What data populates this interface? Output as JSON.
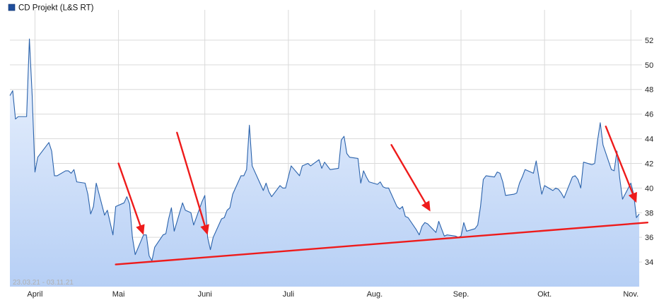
{
  "legend": {
    "label": "CD Projekt (L&S RT)",
    "color": "#1f4e9c"
  },
  "date_range": "23.03.21 - 03.11.21",
  "chart_data": {
    "type": "area",
    "title": "",
    "xlabel": "",
    "ylabel": "",
    "series": [
      {
        "name": "CD Projekt (L&S RT)",
        "color": "#2a62ab",
        "fill_top": "#eef4fe",
        "fill_bottom": "#b6cff5",
        "points": [
          [
            "2021-03-23",
            47.5
          ],
          [
            "2021-03-24",
            47.9
          ],
          [
            "2021-03-25",
            45.6
          ],
          [
            "2021-03-26",
            45.8
          ],
          [
            "2021-03-29",
            45.8
          ],
          [
            "2021-03-30",
            52.1
          ],
          [
            "2021-03-31",
            47.5
          ],
          [
            "2021-04-01",
            41.3
          ],
          [
            "2021-04-02",
            42.5
          ],
          [
            "2021-04-06",
            43.7
          ],
          [
            "2021-04-07",
            43.0
          ],
          [
            "2021-04-08",
            41.0
          ],
          [
            "2021-04-09",
            41.0
          ],
          [
            "2021-04-12",
            41.4
          ],
          [
            "2021-04-13",
            41.4
          ],
          [
            "2021-04-14",
            41.2
          ],
          [
            "2021-04-15",
            41.5
          ],
          [
            "2021-04-16",
            40.5
          ],
          [
            "2021-04-19",
            40.4
          ],
          [
            "2021-04-20",
            39.5
          ],
          [
            "2021-04-21",
            37.9
          ],
          [
            "2021-04-22",
            38.5
          ],
          [
            "2021-04-23",
            40.4
          ],
          [
            "2021-04-26",
            37.8
          ],
          [
            "2021-04-27",
            38.2
          ],
          [
            "2021-04-28",
            37.2
          ],
          [
            "2021-04-29",
            36.2
          ],
          [
            "2021-04-30",
            38.5
          ],
          [
            "2021-05-03",
            38.8
          ],
          [
            "2021-05-04",
            39.3
          ],
          [
            "2021-05-05",
            38.7
          ],
          [
            "2021-05-06",
            36.0
          ],
          [
            "2021-05-07",
            34.6
          ],
          [
            "2021-05-10",
            36.2
          ],
          [
            "2021-05-11",
            36.2
          ],
          [
            "2021-05-12",
            34.5
          ],
          [
            "2021-05-13",
            34.1
          ],
          [
            "2021-05-14",
            35.2
          ],
          [
            "2021-05-17",
            36.2
          ],
          [
            "2021-05-18",
            36.3
          ],
          [
            "2021-05-19",
            37.5
          ],
          [
            "2021-05-20",
            38.4
          ],
          [
            "2021-05-21",
            36.5
          ],
          [
            "2021-05-24",
            38.8
          ],
          [
            "2021-05-25",
            38.2
          ],
          [
            "2021-05-26",
            38.1
          ],
          [
            "2021-05-27",
            38.0
          ],
          [
            "2021-05-28",
            37.0
          ],
          [
            "2021-05-31",
            38.9
          ],
          [
            "2021-06-01",
            39.4
          ],
          [
            "2021-06-02",
            36.0
          ],
          [
            "2021-06-03",
            35.0
          ],
          [
            "2021-06-04",
            36.0
          ],
          [
            "2021-06-07",
            37.5
          ],
          [
            "2021-06-08",
            37.6
          ],
          [
            "2021-06-09",
            38.2
          ],
          [
            "2021-06-10",
            38.4
          ],
          [
            "2021-06-11",
            39.5
          ],
          [
            "2021-06-14",
            41.0
          ],
          [
            "2021-06-15",
            41.0
          ],
          [
            "2021-06-16",
            41.5
          ],
          [
            "2021-06-17",
            45.1
          ],
          [
            "2021-06-18",
            41.8
          ],
          [
            "2021-06-21",
            40.3
          ],
          [
            "2021-06-22",
            39.8
          ],
          [
            "2021-06-23",
            40.4
          ],
          [
            "2021-06-24",
            39.7
          ],
          [
            "2021-06-25",
            39.3
          ],
          [
            "2021-06-28",
            40.2
          ],
          [
            "2021-06-29",
            40.0
          ],
          [
            "2021-06-30",
            40.0
          ],
          [
            "2021-07-01",
            40.9
          ],
          [
            "2021-07-02",
            41.8
          ],
          [
            "2021-07-05",
            41.0
          ],
          [
            "2021-07-06",
            41.8
          ],
          [
            "2021-07-07",
            41.9
          ],
          [
            "2021-07-08",
            42.0
          ],
          [
            "2021-07-09",
            41.8
          ],
          [
            "2021-07-12",
            42.3
          ],
          [
            "2021-07-13",
            41.6
          ],
          [
            "2021-07-14",
            42.1
          ],
          [
            "2021-07-15",
            41.8
          ],
          [
            "2021-07-16",
            41.5
          ],
          [
            "2021-07-19",
            41.6
          ],
          [
            "2021-07-20",
            43.9
          ],
          [
            "2021-07-21",
            44.2
          ],
          [
            "2021-07-22",
            42.8
          ],
          [
            "2021-07-23",
            42.5
          ],
          [
            "2021-07-26",
            42.4
          ],
          [
            "2021-07-27",
            40.4
          ],
          [
            "2021-07-28",
            41.4
          ],
          [
            "2021-07-29",
            40.9
          ],
          [
            "2021-07-30",
            40.5
          ],
          [
            "2021-08-02",
            40.3
          ],
          [
            "2021-08-03",
            40.5
          ],
          [
            "2021-08-04",
            40.1
          ],
          [
            "2021-08-05",
            40.0
          ],
          [
            "2021-08-06",
            40.0
          ],
          [
            "2021-08-09",
            38.5
          ],
          [
            "2021-08-10",
            38.3
          ],
          [
            "2021-08-11",
            38.5
          ],
          [
            "2021-08-12",
            37.7
          ],
          [
            "2021-08-13",
            37.6
          ],
          [
            "2021-08-16",
            36.6
          ],
          [
            "2021-08-17",
            36.2
          ],
          [
            "2021-08-18",
            36.9
          ],
          [
            "2021-08-19",
            37.2
          ],
          [
            "2021-08-20",
            37.1
          ],
          [
            "2021-08-23",
            36.4
          ],
          [
            "2021-08-24",
            37.3
          ],
          [
            "2021-08-25",
            36.7
          ],
          [
            "2021-08-26",
            36.1
          ],
          [
            "2021-08-27",
            36.2
          ],
          [
            "2021-08-30",
            36.1
          ],
          [
            "2021-08-31",
            36.0
          ],
          [
            "2021-09-01",
            36.1
          ],
          [
            "2021-09-02",
            37.2
          ],
          [
            "2021-09-03",
            36.5
          ],
          [
            "2021-09-06",
            36.7
          ],
          [
            "2021-09-07",
            37.0
          ],
          [
            "2021-09-08",
            38.5
          ],
          [
            "2021-09-09",
            40.7
          ],
          [
            "2021-09-10",
            41.0
          ],
          [
            "2021-09-13",
            40.9
          ],
          [
            "2021-09-14",
            41.3
          ],
          [
            "2021-09-15",
            41.2
          ],
          [
            "2021-09-16",
            40.5
          ],
          [
            "2021-09-17",
            39.4
          ],
          [
            "2021-09-20",
            39.5
          ],
          [
            "2021-09-21",
            39.6
          ],
          [
            "2021-09-22",
            40.4
          ],
          [
            "2021-09-23",
            40.9
          ],
          [
            "2021-09-24",
            41.5
          ],
          [
            "2021-09-27",
            41.2
          ],
          [
            "2021-09-28",
            42.2
          ],
          [
            "2021-09-29",
            40.8
          ],
          [
            "2021-09-30",
            39.5
          ],
          [
            "2021-10-01",
            40.2
          ],
          [
            "2021-10-04",
            39.8
          ],
          [
            "2021-10-05",
            40.0
          ],
          [
            "2021-10-06",
            39.9
          ],
          [
            "2021-10-07",
            39.6
          ],
          [
            "2021-10-08",
            39.2
          ],
          [
            "2021-10-11",
            40.9
          ],
          [
            "2021-10-12",
            41.0
          ],
          [
            "2021-10-13",
            40.7
          ],
          [
            "2021-10-14",
            40.0
          ],
          [
            "2021-10-15",
            42.1
          ],
          [
            "2021-10-18",
            41.9
          ],
          [
            "2021-10-19",
            42.0
          ],
          [
            "2021-10-20",
            43.8
          ],
          [
            "2021-10-21",
            45.3
          ],
          [
            "2021-10-22",
            43.5
          ],
          [
            "2021-10-25",
            41.5
          ],
          [
            "2021-10-26",
            41.4
          ],
          [
            "2021-10-27",
            43.0
          ],
          [
            "2021-10-28",
            40.8
          ],
          [
            "2021-10-29",
            39.1
          ],
          [
            "2021-11-01",
            40.4
          ],
          [
            "2021-11-02",
            39.5
          ],
          [
            "2021-11-03",
            37.6
          ],
          [
            "2021-11-04",
            37.9
          ]
        ]
      }
    ],
    "x_range": [
      "2021-03-23",
      "2021-11-05"
    ],
    "x_ticks": [
      {
        "date": "2021-04-01",
        "label": "April"
      },
      {
        "date": "2021-05-01",
        "label": "Mai"
      },
      {
        "date": "2021-06-01",
        "label": "Juni"
      },
      {
        "date": "2021-07-01",
        "label": "Juli"
      },
      {
        "date": "2021-08-01",
        "label": "Aug."
      },
      {
        "date": "2021-09-01",
        "label": "Sep."
      },
      {
        "date": "2021-10-01",
        "label": "Okt."
      },
      {
        "date": "2021-11-01",
        "label": "Nov."
      }
    ],
    "ylim": [
      32.0,
      54.0
    ],
    "y_ticks": [
      34,
      36,
      38,
      40,
      42,
      44,
      46,
      48,
      50,
      52
    ],
    "y_axis_side": "right",
    "grid": true,
    "legend_position": "top-left",
    "annotations": {
      "trendline": {
        "color": "#ee1b1b",
        "start": [
          "2021-04-30",
          33.8
        ],
        "end": [
          "2021-11-07",
          37.2
        ]
      },
      "arrows": [
        {
          "color": "#ee1b1b",
          "from": [
            "2021-05-01",
            42.0
          ],
          "to": [
            "2021-05-10",
            36.2
          ]
        },
        {
          "color": "#ee1b1b",
          "from": [
            "2021-05-22",
            44.5
          ],
          "to": [
            "2021-06-02",
            36.2
          ]
        },
        {
          "color": "#ee1b1b",
          "from": [
            "2021-08-07",
            43.5
          ],
          "to": [
            "2021-08-21",
            38.1
          ]
        },
        {
          "color": "#ee1b1b",
          "from": [
            "2021-10-23",
            45.0
          ],
          "to": [
            "2021-11-03",
            38.8
          ]
        }
      ]
    }
  }
}
